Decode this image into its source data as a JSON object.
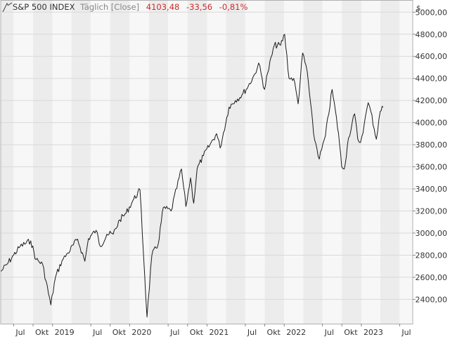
{
  "header": {
    "instrument": "S&P 500 INDEX",
    "interval": "Täglich [Close]",
    "last": "4103,48",
    "change": "-33,56",
    "change_pct": "-0,81%"
  },
  "currency_symbol": "$",
  "colors": {
    "line": "#1a1a1a",
    "negative": "#cc2b2b",
    "grid": "#d9d9d9",
    "band_dark": "#ececec",
    "band_light": "#f7f7f7"
  },
  "chart_data": {
    "type": "line",
    "title": "S&P 500 INDEX",
    "series": [
      {
        "name": "S&P 500 INDEX",
        "x": [
          "2018-05-01",
          "2018-06-01",
          "2018-07-01",
          "2018-08-01",
          "2018-09-20",
          "2018-10-15",
          "2018-11-15",
          "2018-12-24",
          "2019-01-15",
          "2019-02-15",
          "2019-03-15",
          "2019-04-30",
          "2019-06-03",
          "2019-06-20",
          "2019-07-26",
          "2019-08-15",
          "2019-09-15",
          "2019-10-15",
          "2019-11-15",
          "2019-12-15",
          "2020-01-15",
          "2020-02-19",
          "2020-03-23",
          "2020-04-15",
          "2020-05-15",
          "2020-06-08",
          "2020-07-15",
          "2020-09-02",
          "2020-09-23",
          "2020-10-15",
          "2020-10-30",
          "2020-11-15",
          "2020-12-15",
          "2021-01-15",
          "2021-02-15",
          "2021-03-04",
          "2021-04-15",
          "2021-05-15",
          "2021-06-15",
          "2021-07-15",
          "2021-08-15",
          "2021-09-02",
          "2021-09-30",
          "2021-10-15",
          "2021-11-15",
          "2021-12-15",
          "2022-01-03",
          "2022-01-24",
          "2022-02-15",
          "2022-03-08",
          "2022-03-29",
          "2022-04-20",
          "2022-05-20",
          "2022-06-16",
          "2022-07-15",
          "2022-08-16",
          "2022-09-15",
          "2022-09-30",
          "2022-10-12",
          "2022-11-01",
          "2022-11-30",
          "2022-12-15",
          "2022-12-28",
          "2023-01-15",
          "2023-02-02",
          "2023-02-15",
          "2023-03-13",
          "2023-03-31",
          "2023-04-14"
        ],
        "values": [
          2650,
          2720,
          2800,
          2880,
          2930,
          2760,
          2720,
          2350,
          2600,
          2750,
          2820,
          2945,
          2745,
          2950,
          3025,
          2880,
          2990,
          2990,
          3120,
          3180,
          3290,
          3390,
          2240,
          2800,
          2900,
          3230,
          3200,
          3580,
          3240,
          3500,
          3270,
          3580,
          3700,
          3800,
          3900,
          3770,
          4140,
          4200,
          4250,
          4330,
          4440,
          4540,
          4300,
          4450,
          4700,
          4700,
          4800,
          4400,
          4400,
          4170,
          4630,
          4460,
          3900,
          3670,
          3880,
          4300,
          3900,
          3600,
          3580,
          3860,
          4080,
          3850,
          3820,
          3990,
          4180,
          4100,
          3850,
          4100,
          4140
        ],
        "color": "#1a1a1a"
      }
    ],
    "x_axis": {
      "ticks": [
        "Jul",
        "Okt",
        "2019",
        "Jul",
        "Okt",
        "2020",
        "Jul",
        "Okt",
        "2021",
        "Jul",
        "Okt",
        "2022",
        "Jul",
        "Okt",
        "2023",
        "Jul"
      ],
      "tick_dates": [
        "2018-07-01",
        "2018-10-01",
        "2019-01-01",
        "2019-07-01",
        "2019-10-01",
        "2020-01-01",
        "2020-07-01",
        "2020-10-01",
        "2021-01-01",
        "2021-07-01",
        "2021-10-01",
        "2022-01-01",
        "2022-07-01",
        "2022-10-01",
        "2023-01-01",
        "2023-07-01"
      ],
      "range": [
        "2018-05-01",
        "2023-09-01"
      ]
    },
    "y_axis": {
      "label": "$",
      "ticks": [
        "2400,00",
        "2600,00",
        "2800,00",
        "3000,00",
        "3200,00",
        "3400,00",
        "3600,00",
        "3800,00",
        "4000,00",
        "4200,00",
        "4400,00",
        "4600,00",
        "4800,00",
        "5000,00"
      ],
      "tick_values": [
        2400,
        2600,
        2800,
        3000,
        3200,
        3400,
        3600,
        3800,
        4000,
        4200,
        4400,
        4600,
        4800,
        5000
      ],
      "range": [
        2180,
        5110
      ]
    },
    "grid": true,
    "legend": "none"
  }
}
